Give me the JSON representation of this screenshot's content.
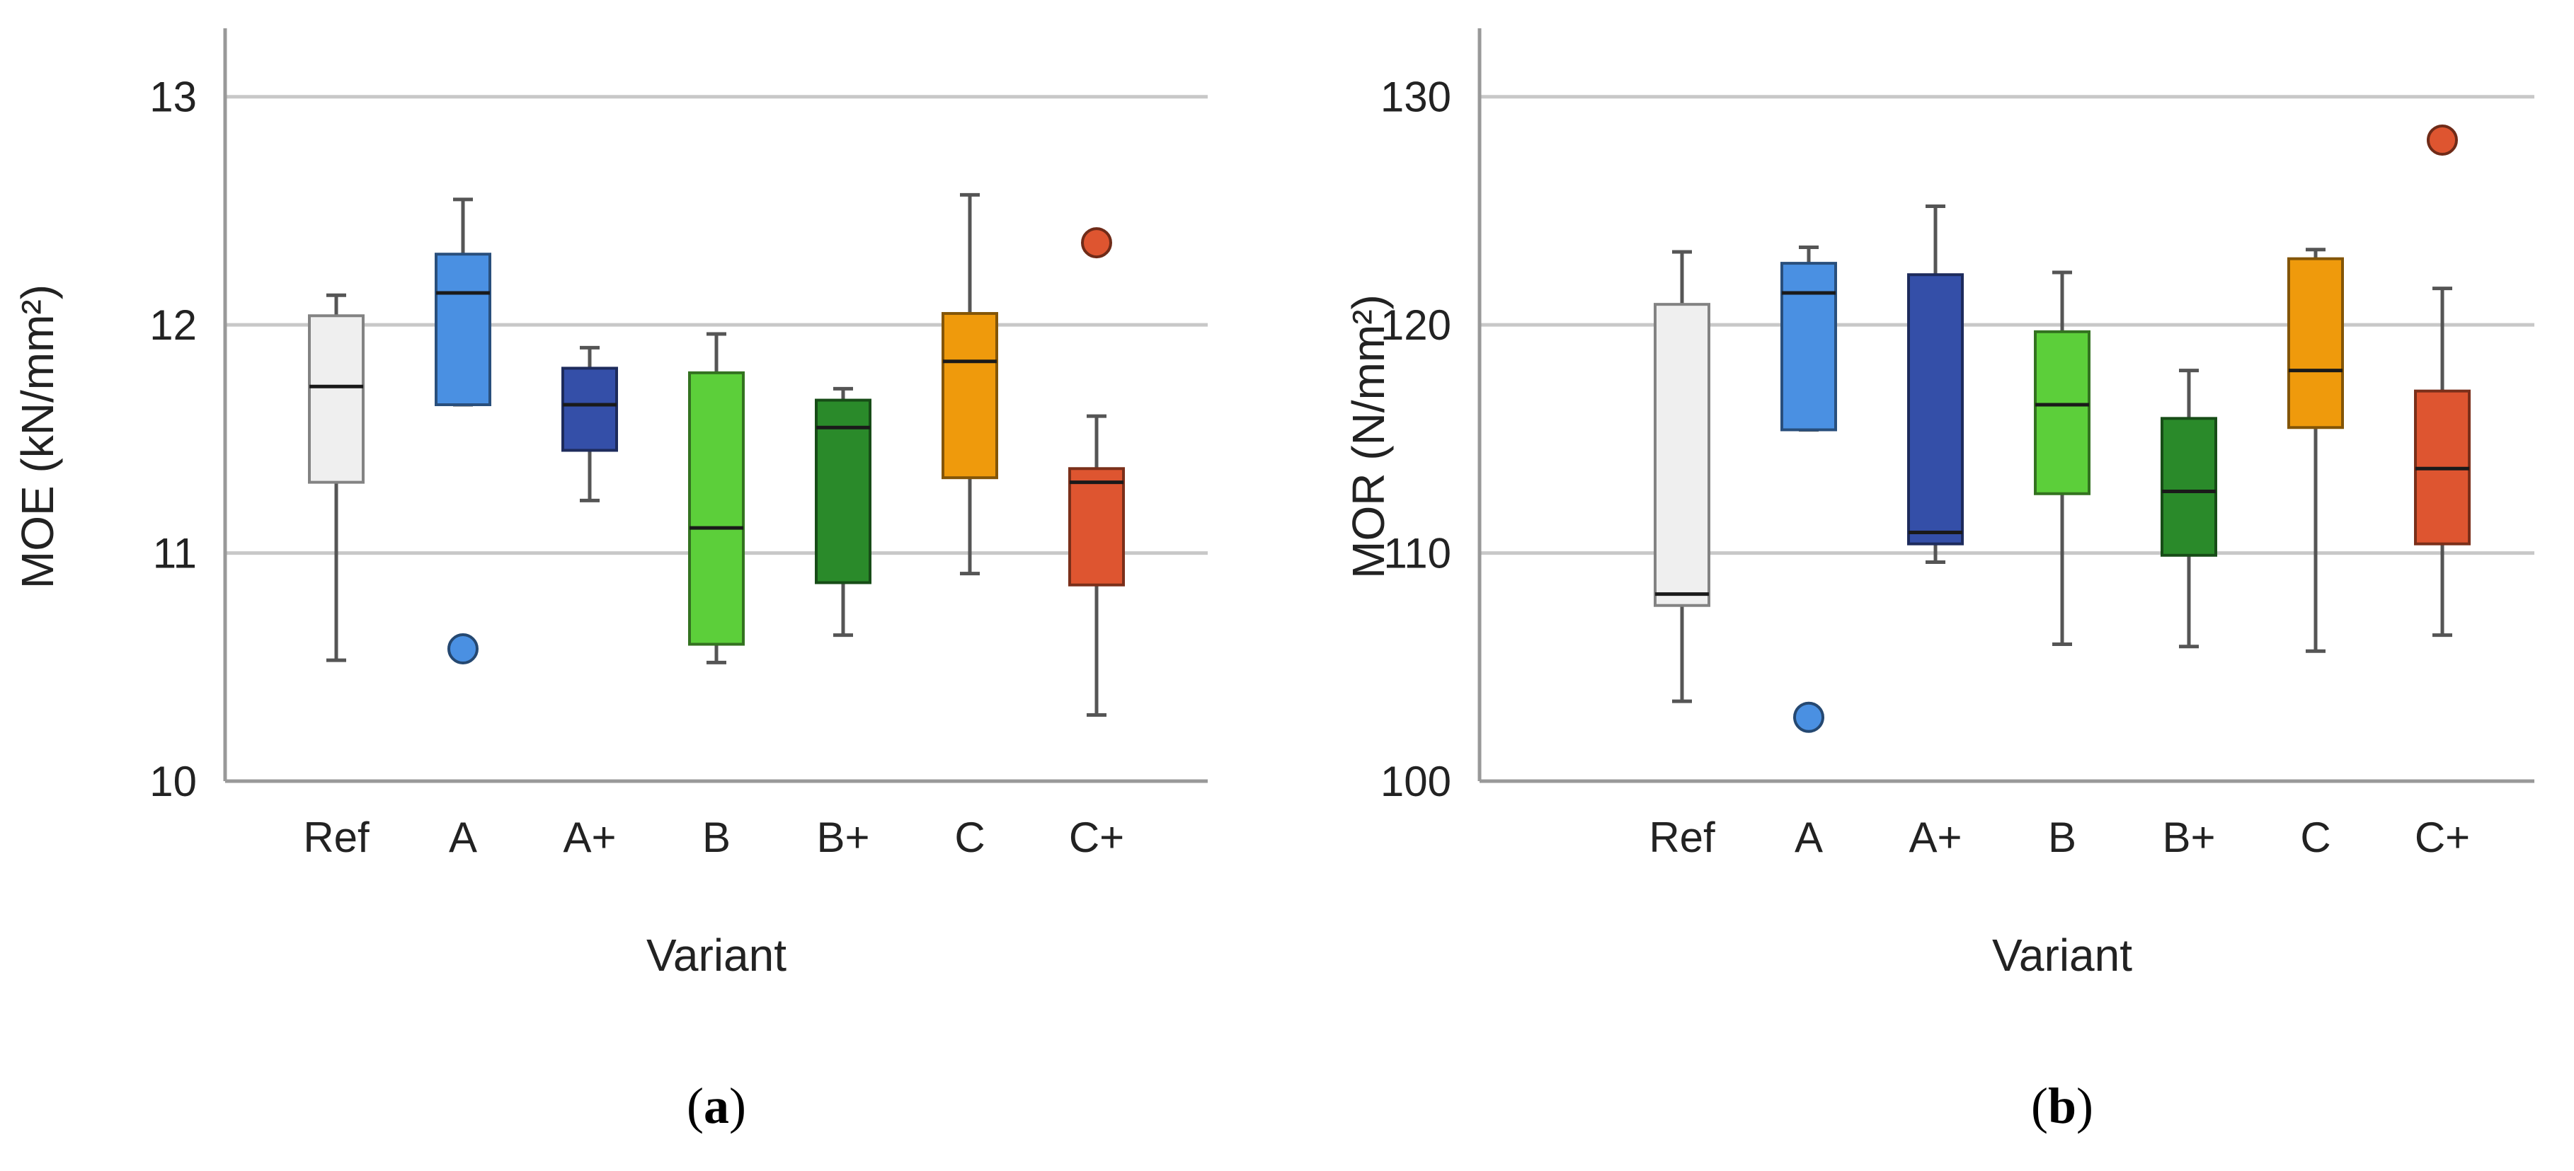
{
  "panels": [
    {
      "caption_letter": "a",
      "chart_data": {
        "type": "box",
        "title": "",
        "xlabel": "Variant",
        "ylabel": "MOE (kN/mm²)",
        "ylim": [
          10,
          13.3
        ],
        "yticks": [
          10,
          11,
          12,
          13
        ],
        "grid": "horizontal",
        "categories": [
          "Ref",
          "A",
          "A+",
          "B",
          "B+",
          "C",
          "C+"
        ],
        "colors": [
          "#efefef",
          "#4a90e2",
          "#344fa8",
          "#5ccf3a",
          "#2a8a2a",
          "#ef9a0c",
          "#de5530"
        ],
        "boxes": [
          {
            "min": 10.53,
            "q1": 11.31,
            "median": 11.73,
            "q3": 12.04,
            "max": 12.13
          },
          {
            "min": 11.65,
            "q1": 11.65,
            "median": 12.14,
            "q3": 12.31,
            "max": 12.55
          },
          {
            "min": 11.23,
            "q1": 11.45,
            "median": 11.65,
            "q3": 11.81,
            "max": 11.9
          },
          {
            "min": 10.52,
            "q1": 10.6,
            "median": 11.11,
            "q3": 11.79,
            "max": 11.96
          },
          {
            "min": 10.64,
            "q1": 10.87,
            "median": 11.55,
            "q3": 11.67,
            "max": 11.72
          },
          {
            "min": 10.91,
            "q1": 11.33,
            "median": 11.84,
            "q3": 12.05,
            "max": 12.57
          },
          {
            "min": 10.29,
            "q1": 10.86,
            "median": 11.31,
            "q3": 11.37,
            "max": 11.6
          }
        ],
        "outliers": [
          {
            "category": "A",
            "value": 10.58
          },
          {
            "category": "C+",
            "value": 12.36
          }
        ]
      }
    },
    {
      "caption_letter": "b",
      "chart_data": {
        "type": "box",
        "title": "",
        "xlabel": "Variant",
        "ylabel": "MOR (N/mm²)",
        "ylim": [
          100,
          133
        ],
        "yticks": [
          100,
          110,
          120,
          130
        ],
        "grid": "horizontal",
        "categories": [
          "Ref",
          "A",
          "A+",
          "B",
          "B+",
          "C",
          "C+"
        ],
        "colors": [
          "#efefef",
          "#4a90e2",
          "#344fa8",
          "#5ccf3a",
          "#2a8a2a",
          "#ef9a0c",
          "#de5530"
        ],
        "boxes": [
          {
            "min": 103.5,
            "q1": 107.7,
            "median": 108.2,
            "q3": 120.9,
            "max": 123.2
          },
          {
            "min": 115.4,
            "q1": 115.4,
            "median": 121.4,
            "q3": 122.7,
            "max": 123.4
          },
          {
            "min": 109.6,
            "q1": 110.4,
            "median": 110.9,
            "q3": 122.2,
            "max": 125.2
          },
          {
            "min": 106.0,
            "q1": 112.6,
            "median": 116.5,
            "q3": 119.7,
            "max": 122.3
          },
          {
            "min": 105.9,
            "q1": 109.9,
            "median": 112.7,
            "q3": 115.9,
            "max": 118.0
          },
          {
            "min": 105.7,
            "q1": 115.5,
            "median": 118.0,
            "q3": 122.9,
            "max": 123.3
          },
          {
            "min": 106.4,
            "q1": 110.4,
            "median": 113.7,
            "q3": 117.1,
            "max": 121.6
          }
        ],
        "outliers": [
          {
            "category": "A",
            "value": 102.8
          },
          {
            "category": "C+",
            "value": 128.1
          }
        ]
      }
    }
  ]
}
